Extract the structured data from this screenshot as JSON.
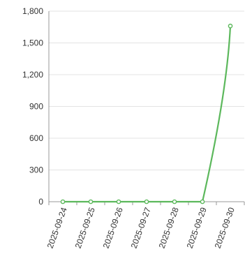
{
  "chart_data": {
    "type": "line",
    "title": "",
    "xlabel": "",
    "ylabel": "",
    "categories": [
      "2025-09-24",
      "2025-09-25",
      "2025-09-26",
      "2025-09-27",
      "2025-09-28",
      "2025-09-29",
      "2025-09-30"
    ],
    "series": [
      {
        "values": [
          0,
          0,
          0,
          0,
          0,
          0,
          1660
        ],
        "color": "#5cb85c"
      }
    ],
    "yticks": [
      "0",
      "300",
      "600",
      "900",
      "1,200",
      "1,500",
      "1,800"
    ],
    "ylim": [
      0,
      1800
    ],
    "grid": true,
    "legend": "none"
  }
}
